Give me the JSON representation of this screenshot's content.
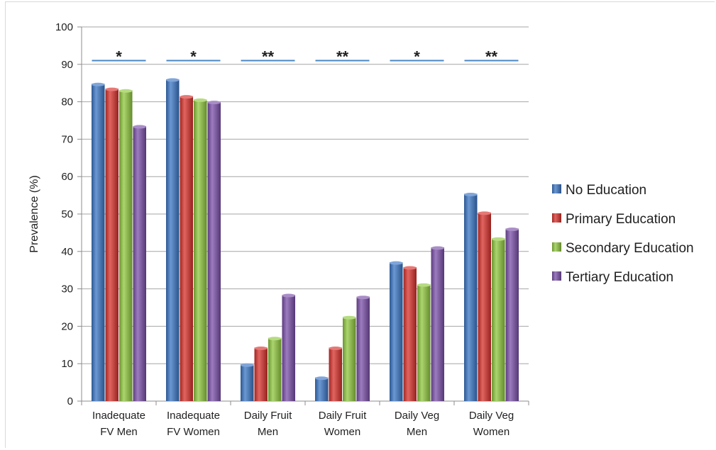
{
  "chart_data": {
    "type": "bar",
    "title": "",
    "xlabel": "",
    "ylabel": "Prevalence  (%)",
    "ylim": [
      0,
      100
    ],
    "yticks": [
      0,
      10,
      20,
      30,
      40,
      50,
      60,
      70,
      80,
      90,
      100
    ],
    "grid": true,
    "legend_position": "right",
    "categories": [
      [
        "Inadequate",
        "FV Men"
      ],
      [
        "Inadequate",
        "FV Women"
      ],
      [
        "Daily Fruit",
        "Men"
      ],
      [
        "Daily Fruit",
        "Women"
      ],
      [
        "Daily Veg",
        "Men"
      ],
      [
        "Daily Veg",
        "Women"
      ]
    ],
    "series": [
      {
        "name": "No Education",
        "color": "#3a75c4",
        "values": [
          84.8,
          86.0,
          9.8,
          6.3,
          37.1,
          55.4
        ]
      },
      {
        "name": "Primary Education",
        "color": "#d7302b",
        "values": [
          83.5,
          81.5,
          14.3,
          14.3,
          35.8,
          50.4
        ]
      },
      {
        "name": "Secondary Education",
        "color": "#8fc73e",
        "values": [
          83.1,
          80.6,
          16.9,
          22.5,
          31.2,
          43.5
        ]
      },
      {
        "name": "Tertiary Education",
        "color": "#7b4fa8",
        "values": [
          73.5,
          80.0,
          28.4,
          27.9,
          41.1,
          46.1
        ]
      }
    ],
    "significance": {
      "level": 91,
      "color": "#4a86c5",
      "markers": [
        "*",
        "*",
        "**",
        "**",
        "*",
        "**"
      ]
    }
  }
}
